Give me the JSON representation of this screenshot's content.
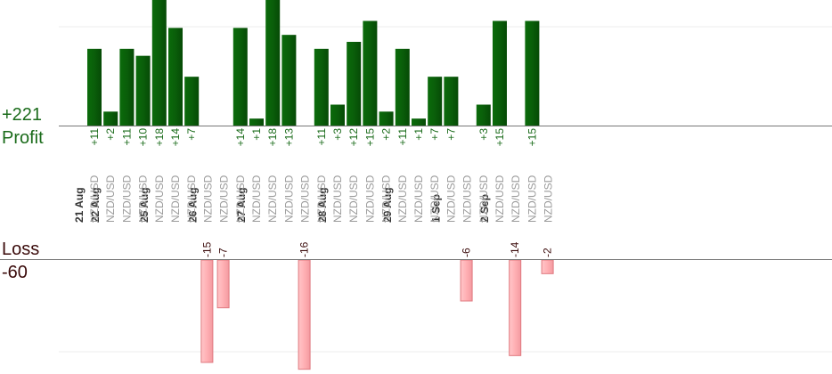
{
  "summary": {
    "profit_total": "+221",
    "profit_label": "Profit",
    "loss_label": "Loss",
    "loss_total": "-60"
  },
  "colors": {
    "profit_bar": "#0a5e0a",
    "profit_text": "#1a6b1a",
    "loss_bar": "#ffb0b4",
    "loss_bar_border": "#e07a80",
    "loss_text": "#3a0a0a",
    "date_text": "#333333",
    "pair_text": "#9a9a9a"
  },
  "chart_data": {
    "type": "bar",
    "pair": "NZD/USD",
    "profit_scale_max": 18,
    "loss_scale_max": 15,
    "columns": [
      {
        "date": "21 Aug",
        "profit": 11
      },
      {
        "date": "22 Aug",
        "profit": 2
      },
      {
        "profit": 11
      },
      {
        "profit": 10
      },
      {
        "date": "25 Aug",
        "profit": 18
      },
      {
        "profit": 14
      },
      {
        "profit": 7
      },
      {
        "date": "26 Aug",
        "loss": -15
      },
      {
        "loss": -7
      },
      {
        "profit": 14
      },
      {
        "date": "27 Aug",
        "profit": 1
      },
      {
        "profit": 18
      },
      {
        "profit": 13
      },
      {
        "loss": -16
      },
      {
        "profit": 11
      },
      {
        "date": "28 Aug",
        "profit": 3
      },
      {
        "profit": 12
      },
      {
        "profit": 15
      },
      {
        "profit": 2
      },
      {
        "date": "29 Aug",
        "profit": 11
      },
      {
        "profit": 1
      },
      {
        "profit": 7
      },
      {
        "date": "1 Sep",
        "profit": 7
      },
      {
        "loss": -6
      },
      {
        "profit": 3
      },
      {
        "date": "2 Sep",
        "profit": 15
      },
      {
        "loss": -14
      },
      {
        "profit": 15
      },
      {
        "loss": -2
      }
    ]
  }
}
